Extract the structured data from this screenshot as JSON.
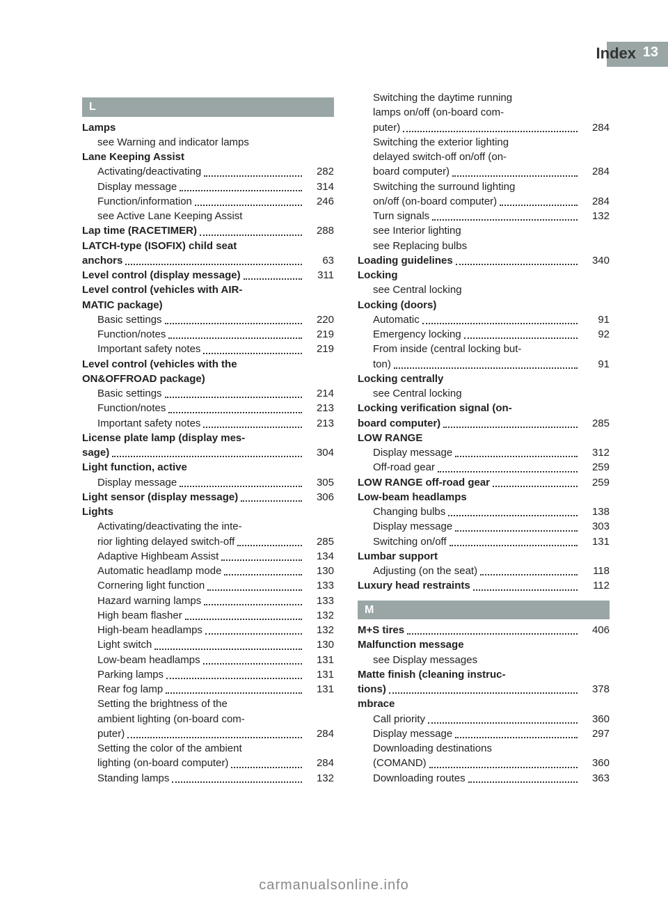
{
  "header": {
    "title": "Index",
    "page": "13"
  },
  "footer": "carmanualsonline.info",
  "colors": {
    "headerGray": "#9aa6a6",
    "text": "#222",
    "footer": "#888"
  },
  "left": [
    {
      "type": "letter",
      "text": "L"
    },
    {
      "type": "entry",
      "bold": true,
      "text": "Lamps"
    },
    {
      "type": "sub",
      "text": "see Warning and indicator lamps"
    },
    {
      "type": "entry",
      "bold": true,
      "text": "Lane Keeping Assist"
    },
    {
      "type": "sub",
      "text": "Activating/deactivating",
      "page": "282"
    },
    {
      "type": "sub",
      "text": "Display message",
      "page": "314"
    },
    {
      "type": "sub",
      "text": "Function/information",
      "page": "246"
    },
    {
      "type": "sub",
      "text": "see Active Lane Keeping Assist"
    },
    {
      "type": "entry",
      "bold": true,
      "text": "Lap time (RACETIMER)",
      "page": "288"
    },
    {
      "type": "entry",
      "bold": true,
      "multi": [
        "LATCH-type (ISOFIX) child seat",
        "anchors"
      ],
      "page": "63"
    },
    {
      "type": "entry",
      "bold": true,
      "text": "Level control (display message)",
      "page": "311"
    },
    {
      "type": "entry",
      "bold": true,
      "multi": [
        "Level control (vehicles with AIR-",
        "MATIC package)"
      ]
    },
    {
      "type": "sub",
      "text": "Basic settings",
      "page": "220"
    },
    {
      "type": "sub",
      "text": "Function/notes",
      "page": "219"
    },
    {
      "type": "sub",
      "text": "Important safety notes",
      "page": "219"
    },
    {
      "type": "entry",
      "bold": true,
      "multi": [
        "Level control (vehicles with the",
        "ON&OFFROAD package)"
      ]
    },
    {
      "type": "sub",
      "text": "Basic settings",
      "page": "214"
    },
    {
      "type": "sub",
      "text": "Function/notes",
      "page": "213"
    },
    {
      "type": "sub",
      "text": "Important safety notes",
      "page": "213"
    },
    {
      "type": "entry",
      "bold": true,
      "multi": [
        "License plate lamp (display mes-",
        "sage)"
      ],
      "page": "304"
    },
    {
      "type": "entry",
      "bold": true,
      "text": "Light function, active"
    },
    {
      "type": "sub",
      "text": "Display message",
      "page": "305"
    },
    {
      "type": "entry",
      "bold": true,
      "text": "Light sensor (display message)",
      "page": "306"
    },
    {
      "type": "entry",
      "bold": true,
      "text": "Lights"
    },
    {
      "type": "sub",
      "multi": [
        "Activating/deactivating the inte-",
        "rior lighting delayed switch-off"
      ],
      "page": "285"
    },
    {
      "type": "sub",
      "text": "Adaptive Highbeam Assist",
      "page": "134"
    },
    {
      "type": "sub",
      "text": "Automatic headlamp mode",
      "page": "130"
    },
    {
      "type": "sub",
      "text": "Cornering light function",
      "page": "133"
    },
    {
      "type": "sub",
      "text": "Hazard warning lamps",
      "page": "133"
    },
    {
      "type": "sub",
      "text": "High beam flasher",
      "page": "132"
    },
    {
      "type": "sub",
      "text": "High-beam headlamps",
      "page": "132"
    },
    {
      "type": "sub",
      "text": "Light switch",
      "page": "130"
    },
    {
      "type": "sub",
      "text": "Low-beam headlamps",
      "page": "131"
    },
    {
      "type": "sub",
      "text": "Parking lamps",
      "page": "131"
    },
    {
      "type": "sub",
      "text": "Rear fog lamp",
      "page": "131"
    },
    {
      "type": "sub",
      "multi": [
        "Setting the brightness of the",
        "ambient lighting (on-board com-",
        "puter)"
      ],
      "page": "284"
    },
    {
      "type": "sub",
      "multi": [
        "Setting the color of the ambient",
        "lighting (on-board computer)"
      ],
      "page": "284"
    },
    {
      "type": "sub",
      "text": "Standing lamps",
      "page": "132"
    }
  ],
  "right": [
    {
      "type": "sub",
      "multi": [
        "Switching the daytime running",
        "lamps on/off (on-board com-",
        "puter)"
      ],
      "page": "284"
    },
    {
      "type": "sub",
      "multi": [
        "Switching the exterior lighting",
        "delayed switch-off on/off (on-",
        "board computer)"
      ],
      "page": "284"
    },
    {
      "type": "sub",
      "multi": [
        "Switching the surround lighting",
        "on/off (on-board computer)"
      ],
      "page": "284"
    },
    {
      "type": "sub",
      "text": "Turn signals",
      "page": "132"
    },
    {
      "type": "sub",
      "text": "see Interior lighting"
    },
    {
      "type": "sub",
      "text": "see Replacing bulbs"
    },
    {
      "type": "entry",
      "bold": true,
      "text": "Loading guidelines",
      "page": "340"
    },
    {
      "type": "entry",
      "bold": true,
      "text": "Locking"
    },
    {
      "type": "sub",
      "text": "see Central locking"
    },
    {
      "type": "entry",
      "bold": true,
      "text": "Locking (doors)"
    },
    {
      "type": "sub",
      "text": "Automatic",
      "page": "91"
    },
    {
      "type": "sub",
      "text": "Emergency locking",
      "page": "92"
    },
    {
      "type": "sub",
      "multi": [
        "From inside (central locking but-",
        "ton)"
      ],
      "page": "91"
    },
    {
      "type": "entry",
      "bold": true,
      "text": "Locking centrally"
    },
    {
      "type": "sub",
      "text": "see Central locking"
    },
    {
      "type": "entry",
      "bold": true,
      "multi": [
        "Locking verification signal (on-",
        "board computer)"
      ],
      "page": "285"
    },
    {
      "type": "entry",
      "bold": true,
      "text": "LOW RANGE"
    },
    {
      "type": "sub",
      "text": "Display message",
      "page": "312"
    },
    {
      "type": "sub",
      "text": "Off-road gear",
      "page": "259"
    },
    {
      "type": "entry",
      "bold": true,
      "text": "LOW RANGE off-road gear",
      "page": "259"
    },
    {
      "type": "entry",
      "bold": true,
      "text": "Low-beam headlamps"
    },
    {
      "type": "sub",
      "text": "Changing bulbs",
      "page": "138"
    },
    {
      "type": "sub",
      "text": "Display message",
      "page": "303"
    },
    {
      "type": "sub",
      "text": "Switching on/off",
      "page": "131"
    },
    {
      "type": "entry",
      "bold": true,
      "text": "Lumbar support"
    },
    {
      "type": "sub",
      "text": "Adjusting (on the seat)",
      "page": "118"
    },
    {
      "type": "entry",
      "bold": true,
      "text": "Luxury head restraints",
      "page": "112"
    },
    {
      "type": "letter",
      "text": "M"
    },
    {
      "type": "entry",
      "bold": true,
      "text": "M+S tires",
      "page": "406"
    },
    {
      "type": "entry",
      "bold": true,
      "text": "Malfunction message"
    },
    {
      "type": "sub",
      "text": "see Display messages"
    },
    {
      "type": "entry",
      "bold": true,
      "multi": [
        "Matte finish (cleaning instruc-",
        "tions)"
      ],
      "page": "378"
    },
    {
      "type": "entry",
      "bold": true,
      "text": "mbrace"
    },
    {
      "type": "sub",
      "text": "Call priority",
      "page": "360"
    },
    {
      "type": "sub",
      "text": "Display message",
      "page": "297"
    },
    {
      "type": "sub",
      "multi": [
        "Downloading destinations",
        "(COMAND)"
      ],
      "page": "360"
    },
    {
      "type": "sub",
      "text": "Downloading routes",
      "page": "363"
    }
  ]
}
